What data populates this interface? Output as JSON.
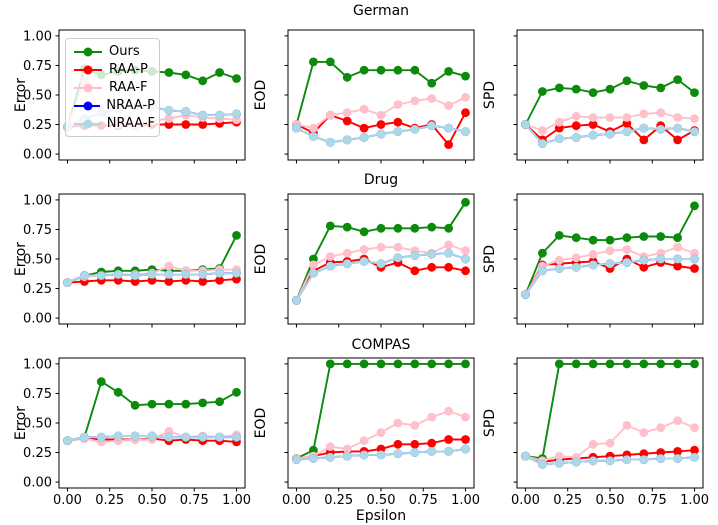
{
  "layout": {
    "row_titles": [
      "German",
      "Drug",
      "COMPAS"
    ],
    "metrics": [
      "Error",
      "EOD",
      "SPD"
    ],
    "xlabel": "Epsilon",
    "x_tick_labels": [
      "0.00",
      "0.25",
      "0.50",
      "0.75",
      "1.00"
    ],
    "y_tick_labels": [
      "0.00",
      "0.25",
      "0.50",
      "0.75",
      "1.00"
    ]
  },
  "legend": {
    "entries": [
      {
        "label": "Ours",
        "color": "#0b8a0b"
      },
      {
        "label": "RAA-P",
        "color": "#ff0000"
      },
      {
        "label": "RAA-F",
        "color": "#ffc0cb"
      },
      {
        "label": "NRAA-P",
        "color": "#0000ff"
      },
      {
        "label": "NRAA-F",
        "color": "#add8e6"
      }
    ]
  },
  "chart_data": [
    {
      "type": "line",
      "dataset": "German",
      "metric": "Error",
      "x": [
        0,
        0.1,
        0.2,
        0.3,
        0.4,
        0.5,
        0.6,
        0.7,
        0.8,
        0.9,
        1.0
      ],
      "xlim": [
        -0.05,
        1.05
      ],
      "ylim": [
        -0.05,
        1.05
      ],
      "y_tick_values": [
        0,
        0.25,
        0.5,
        0.75,
        1.0
      ],
      "series": [
        {
          "name": "Ours",
          "color": "#0b8a0b",
          "values": [
            0.23,
            0.72,
            0.67,
            0.7,
            0.71,
            0.7,
            0.69,
            0.67,
            0.62,
            0.69,
            0.64
          ]
        },
        {
          "name": "RAA-P",
          "color": "#ff0000",
          "values": [
            0.23,
            0.24,
            0.24,
            0.24,
            0.24,
            0.25,
            0.25,
            0.25,
            0.25,
            0.26,
            0.27
          ]
        },
        {
          "name": "RAA-F",
          "color": "#ffc0cb",
          "values": [
            0.23,
            0.62,
            0.35,
            0.25,
            0.24,
            0.28,
            0.3,
            0.33,
            0.31,
            0.3,
            0.29
          ]
        },
        {
          "name": "NRAA-P",
          "color": "#0000ff",
          "values": [
            0.23,
            0.3,
            0.35,
            0.38,
            0.4,
            0.4,
            0.37,
            0.36,
            0.33,
            0.33,
            0.34
          ]
        },
        {
          "name": "NRAA-F",
          "color": "#add8e6",
          "values": [
            0.23,
            0.3,
            0.35,
            0.38,
            0.4,
            0.4,
            0.37,
            0.36,
            0.33,
            0.33,
            0.34
          ]
        }
      ]
    },
    {
      "type": "line",
      "dataset": "German",
      "metric": "EOD",
      "x": [
        0,
        0.1,
        0.2,
        0.3,
        0.4,
        0.5,
        0.6,
        0.7,
        0.8,
        0.9,
        1.0
      ],
      "xlim": [
        -0.05,
        1.05
      ],
      "ylim": [
        -0.05,
        1.05
      ],
      "y_tick_values": [
        0,
        0.25,
        0.5,
        0.75,
        1.0
      ],
      "series": [
        {
          "name": "Ours",
          "color": "#0b8a0b",
          "values": [
            0.25,
            0.78,
            0.78,
            0.65,
            0.71,
            0.71,
            0.71,
            0.71,
            0.6,
            0.7,
            0.66
          ]
        },
        {
          "name": "RAA-P",
          "color": "#ff0000",
          "values": [
            0.25,
            0.18,
            0.33,
            0.28,
            0.22,
            0.25,
            0.27,
            0.22,
            0.25,
            0.08,
            0.35
          ]
        },
        {
          "name": "RAA-F",
          "color": "#ffc0cb",
          "values": [
            0.25,
            0.22,
            0.33,
            0.35,
            0.38,
            0.33,
            0.42,
            0.45,
            0.47,
            0.41,
            0.48
          ]
        },
        {
          "name": "NRAA-P",
          "color": "#0000ff",
          "values": [
            0.22,
            0.15,
            0.1,
            0.12,
            0.14,
            0.17,
            0.19,
            0.21,
            0.24,
            0.22,
            0.19
          ]
        },
        {
          "name": "NRAA-F",
          "color": "#add8e6",
          "values": [
            0.22,
            0.15,
            0.1,
            0.12,
            0.14,
            0.17,
            0.19,
            0.21,
            0.24,
            0.22,
            0.19
          ]
        }
      ]
    },
    {
      "type": "line",
      "dataset": "German",
      "metric": "SPD",
      "x": [
        0,
        0.1,
        0.2,
        0.3,
        0.4,
        0.5,
        0.6,
        0.7,
        0.8,
        0.9,
        1.0
      ],
      "xlim": [
        -0.05,
        1.05
      ],
      "ylim": [
        -0.05,
        1.05
      ],
      "y_tick_values": [
        0,
        0.25,
        0.5,
        0.75,
        1.0
      ],
      "series": [
        {
          "name": "Ours",
          "color": "#0b8a0b",
          "values": [
            0.25,
            0.53,
            0.56,
            0.55,
            0.52,
            0.55,
            0.62,
            0.58,
            0.56,
            0.63,
            0.52
          ]
        },
        {
          "name": "RAA-P",
          "color": "#ff0000",
          "values": [
            0.25,
            0.12,
            0.22,
            0.24,
            0.25,
            0.19,
            0.26,
            0.12,
            0.24,
            0.12,
            0.2
          ]
        },
        {
          "name": "RAA-F",
          "color": "#ffc0cb",
          "values": [
            0.25,
            0.2,
            0.27,
            0.32,
            0.31,
            0.31,
            0.31,
            0.34,
            0.35,
            0.31,
            0.3
          ]
        },
        {
          "name": "NRAA-P",
          "color": "#0000ff",
          "values": [
            0.25,
            0.09,
            0.13,
            0.14,
            0.16,
            0.17,
            0.19,
            0.22,
            0.21,
            0.22,
            0.19
          ]
        },
        {
          "name": "NRAA-F",
          "color": "#add8e6",
          "values": [
            0.25,
            0.09,
            0.13,
            0.14,
            0.16,
            0.17,
            0.19,
            0.22,
            0.21,
            0.22,
            0.19
          ]
        }
      ]
    },
    {
      "type": "line",
      "dataset": "Drug",
      "metric": "Error",
      "x": [
        0,
        0.1,
        0.2,
        0.3,
        0.4,
        0.5,
        0.6,
        0.7,
        0.8,
        0.9,
        1.0
      ],
      "xlim": [
        -0.05,
        1.05
      ],
      "ylim": [
        -0.05,
        1.05
      ],
      "y_tick_values": [
        0,
        0.25,
        0.5,
        0.75,
        1.0
      ],
      "series": [
        {
          "name": "Ours",
          "color": "#0b8a0b",
          "values": [
            0.3,
            0.36,
            0.39,
            0.4,
            0.4,
            0.41,
            0.4,
            0.4,
            0.41,
            0.42,
            0.7
          ]
        },
        {
          "name": "RAA-P",
          "color": "#ff0000",
          "values": [
            0.3,
            0.31,
            0.32,
            0.32,
            0.31,
            0.32,
            0.31,
            0.32,
            0.31,
            0.32,
            0.33
          ]
        },
        {
          "name": "RAA-F",
          "color": "#ffc0cb",
          "values": [
            0.3,
            0.35,
            0.36,
            0.37,
            0.37,
            0.38,
            0.44,
            0.4,
            0.4,
            0.41,
            0.41
          ]
        },
        {
          "name": "NRAA-P",
          "color": "#0000ff",
          "values": [
            0.3,
            0.36,
            0.36,
            0.37,
            0.36,
            0.37,
            0.37,
            0.37,
            0.37,
            0.38,
            0.38
          ]
        },
        {
          "name": "NRAA-F",
          "color": "#add8e6",
          "values": [
            0.3,
            0.36,
            0.36,
            0.37,
            0.36,
            0.37,
            0.37,
            0.37,
            0.37,
            0.38,
            0.38
          ]
        }
      ]
    },
    {
      "type": "line",
      "dataset": "Drug",
      "metric": "EOD",
      "x": [
        0,
        0.1,
        0.2,
        0.3,
        0.4,
        0.5,
        0.6,
        0.7,
        0.8,
        0.9,
        1.0
      ],
      "xlim": [
        -0.05,
        1.05
      ],
      "ylim": [
        -0.05,
        1.05
      ],
      "y_tick_values": [
        0,
        0.25,
        0.5,
        0.75,
        1.0
      ],
      "series": [
        {
          "name": "Ours",
          "color": "#0b8a0b",
          "values": [
            0.15,
            0.5,
            0.78,
            0.77,
            0.73,
            0.76,
            0.76,
            0.76,
            0.77,
            0.76,
            0.98
          ]
        },
        {
          "name": "RAA-P",
          "color": "#ff0000",
          "values": [
            0.15,
            0.4,
            0.47,
            0.48,
            0.5,
            0.43,
            0.47,
            0.4,
            0.43,
            0.43,
            0.4
          ]
        },
        {
          "name": "RAA-F",
          "color": "#ffc0cb",
          "values": [
            0.15,
            0.45,
            0.52,
            0.55,
            0.58,
            0.6,
            0.6,
            0.57,
            0.55,
            0.62,
            0.57
          ]
        },
        {
          "name": "NRAA-P",
          "color": "#0000ff",
          "values": [
            0.15,
            0.38,
            0.44,
            0.46,
            0.48,
            0.46,
            0.51,
            0.53,
            0.54,
            0.55,
            0.5
          ]
        },
        {
          "name": "NRAA-F",
          "color": "#add8e6",
          "values": [
            0.15,
            0.38,
            0.44,
            0.46,
            0.48,
            0.46,
            0.51,
            0.53,
            0.54,
            0.55,
            0.5
          ]
        }
      ]
    },
    {
      "type": "line",
      "dataset": "Drug",
      "metric": "SPD",
      "x": [
        0,
        0.1,
        0.2,
        0.3,
        0.4,
        0.5,
        0.6,
        0.7,
        0.8,
        0.9,
        1.0
      ],
      "xlim": [
        -0.05,
        1.05
      ],
      "ylim": [
        -0.05,
        1.05
      ],
      "y_tick_values": [
        0,
        0.25,
        0.5,
        0.75,
        1.0
      ],
      "series": [
        {
          "name": "Ours",
          "color": "#0b8a0b",
          "values": [
            0.2,
            0.55,
            0.7,
            0.68,
            0.66,
            0.66,
            0.68,
            0.69,
            0.69,
            0.68,
            0.95
          ]
        },
        {
          "name": "RAA-P",
          "color": "#ff0000",
          "values": [
            0.2,
            0.45,
            0.46,
            0.47,
            0.48,
            0.42,
            0.5,
            0.43,
            0.47,
            0.44,
            0.42
          ]
        },
        {
          "name": "RAA-F",
          "color": "#ffc0cb",
          "values": [
            0.2,
            0.44,
            0.49,
            0.51,
            0.54,
            0.57,
            0.58,
            0.52,
            0.55,
            0.6,
            0.55
          ]
        },
        {
          "name": "NRAA-P",
          "color": "#0000ff",
          "values": [
            0.2,
            0.4,
            0.42,
            0.43,
            0.45,
            0.46,
            0.47,
            0.49,
            0.5,
            0.5,
            0.5
          ]
        },
        {
          "name": "NRAA-F",
          "color": "#add8e6",
          "values": [
            0.2,
            0.4,
            0.42,
            0.43,
            0.45,
            0.46,
            0.47,
            0.49,
            0.5,
            0.5,
            0.5
          ]
        }
      ]
    },
    {
      "type": "line",
      "dataset": "COMPAS",
      "metric": "Error",
      "x": [
        0,
        0.1,
        0.2,
        0.3,
        0.4,
        0.5,
        0.6,
        0.7,
        0.8,
        0.9,
        1.0
      ],
      "xlim": [
        -0.05,
        1.05
      ],
      "ylim": [
        -0.05,
        1.05
      ],
      "y_tick_values": [
        0,
        0.25,
        0.5,
        0.75,
        1.0
      ],
      "series": [
        {
          "name": "Ours",
          "color": "#0b8a0b",
          "values": [
            0.35,
            0.38,
            0.85,
            0.76,
            0.65,
            0.66,
            0.66,
            0.66,
            0.67,
            0.68,
            0.76
          ]
        },
        {
          "name": "RAA-P",
          "color": "#ff0000",
          "values": [
            0.35,
            0.37,
            0.36,
            0.36,
            0.36,
            0.37,
            0.35,
            0.36,
            0.35,
            0.35,
            0.34
          ]
        },
        {
          "name": "RAA-F",
          "color": "#ffc0cb",
          "values": [
            0.35,
            0.37,
            0.34,
            0.35,
            0.36,
            0.36,
            0.43,
            0.38,
            0.39,
            0.38,
            0.4
          ]
        },
        {
          "name": "NRAA-P",
          "color": "#0000ff",
          "values": [
            0.35,
            0.38,
            0.38,
            0.39,
            0.39,
            0.39,
            0.38,
            0.38,
            0.38,
            0.38,
            0.38
          ]
        },
        {
          "name": "NRAA-F",
          "color": "#add8e6",
          "values": [
            0.35,
            0.38,
            0.38,
            0.39,
            0.39,
            0.39,
            0.38,
            0.38,
            0.38,
            0.38,
            0.38
          ]
        }
      ]
    },
    {
      "type": "line",
      "dataset": "COMPAS",
      "metric": "EOD",
      "x": [
        0,
        0.1,
        0.2,
        0.3,
        0.4,
        0.5,
        0.6,
        0.7,
        0.8,
        0.9,
        1.0
      ],
      "xlim": [
        -0.05,
        1.05
      ],
      "ylim": [
        -0.05,
        1.05
      ],
      "y_tick_values": [
        0,
        0.25,
        0.5,
        0.75,
        1.0
      ],
      "series": [
        {
          "name": "Ours",
          "color": "#0b8a0b",
          "values": [
            0.2,
            0.27,
            1.0,
            1.0,
            1.0,
            1.0,
            1.0,
            1.0,
            1.0,
            1.0,
            1.0
          ]
        },
        {
          "name": "RAA-P",
          "color": "#ff0000",
          "values": [
            0.2,
            0.22,
            0.25,
            0.26,
            0.26,
            0.28,
            0.32,
            0.32,
            0.33,
            0.36,
            0.36
          ]
        },
        {
          "name": "RAA-F",
          "color": "#ffc0cb",
          "values": [
            0.2,
            0.22,
            0.3,
            0.28,
            0.35,
            0.42,
            0.5,
            0.48,
            0.55,
            0.6,
            0.55
          ]
        },
        {
          "name": "NRAA-P",
          "color": "#0000ff",
          "values": [
            0.19,
            0.2,
            0.21,
            0.22,
            0.23,
            0.23,
            0.24,
            0.25,
            0.26,
            0.26,
            0.28
          ]
        },
        {
          "name": "NRAA-F",
          "color": "#add8e6",
          "values": [
            0.19,
            0.2,
            0.21,
            0.22,
            0.23,
            0.23,
            0.24,
            0.25,
            0.26,
            0.26,
            0.28
          ]
        }
      ]
    },
    {
      "type": "line",
      "dataset": "COMPAS",
      "metric": "SPD",
      "x": [
        0,
        0.1,
        0.2,
        0.3,
        0.4,
        0.5,
        0.6,
        0.7,
        0.8,
        0.9,
        1.0
      ],
      "xlim": [
        -0.05,
        1.05
      ],
      "ylim": [
        -0.05,
        1.05
      ],
      "y_tick_values": [
        0,
        0.25,
        0.5,
        0.75,
        1.0
      ],
      "series": [
        {
          "name": "Ours",
          "color": "#0b8a0b",
          "values": [
            0.22,
            0.2,
            1.0,
            1.0,
            1.0,
            1.0,
            1.0,
            1.0,
            1.0,
            1.0,
            1.0
          ]
        },
        {
          "name": "RAA-P",
          "color": "#ff0000",
          "values": [
            0.22,
            0.17,
            0.19,
            0.2,
            0.21,
            0.22,
            0.23,
            0.24,
            0.25,
            0.26,
            0.27
          ]
        },
        {
          "name": "RAA-F",
          "color": "#ffc0cb",
          "values": [
            0.22,
            0.18,
            0.22,
            0.21,
            0.32,
            0.33,
            0.48,
            0.42,
            0.46,
            0.52,
            0.46
          ]
        },
        {
          "name": "NRAA-P",
          "color": "#0000ff",
          "values": [
            0.22,
            0.15,
            0.16,
            0.17,
            0.18,
            0.18,
            0.19,
            0.19,
            0.2,
            0.2,
            0.21
          ]
        },
        {
          "name": "NRAA-F",
          "color": "#add8e6",
          "values": [
            0.22,
            0.15,
            0.16,
            0.17,
            0.18,
            0.18,
            0.19,
            0.19,
            0.2,
            0.2,
            0.21
          ]
        }
      ]
    }
  ]
}
